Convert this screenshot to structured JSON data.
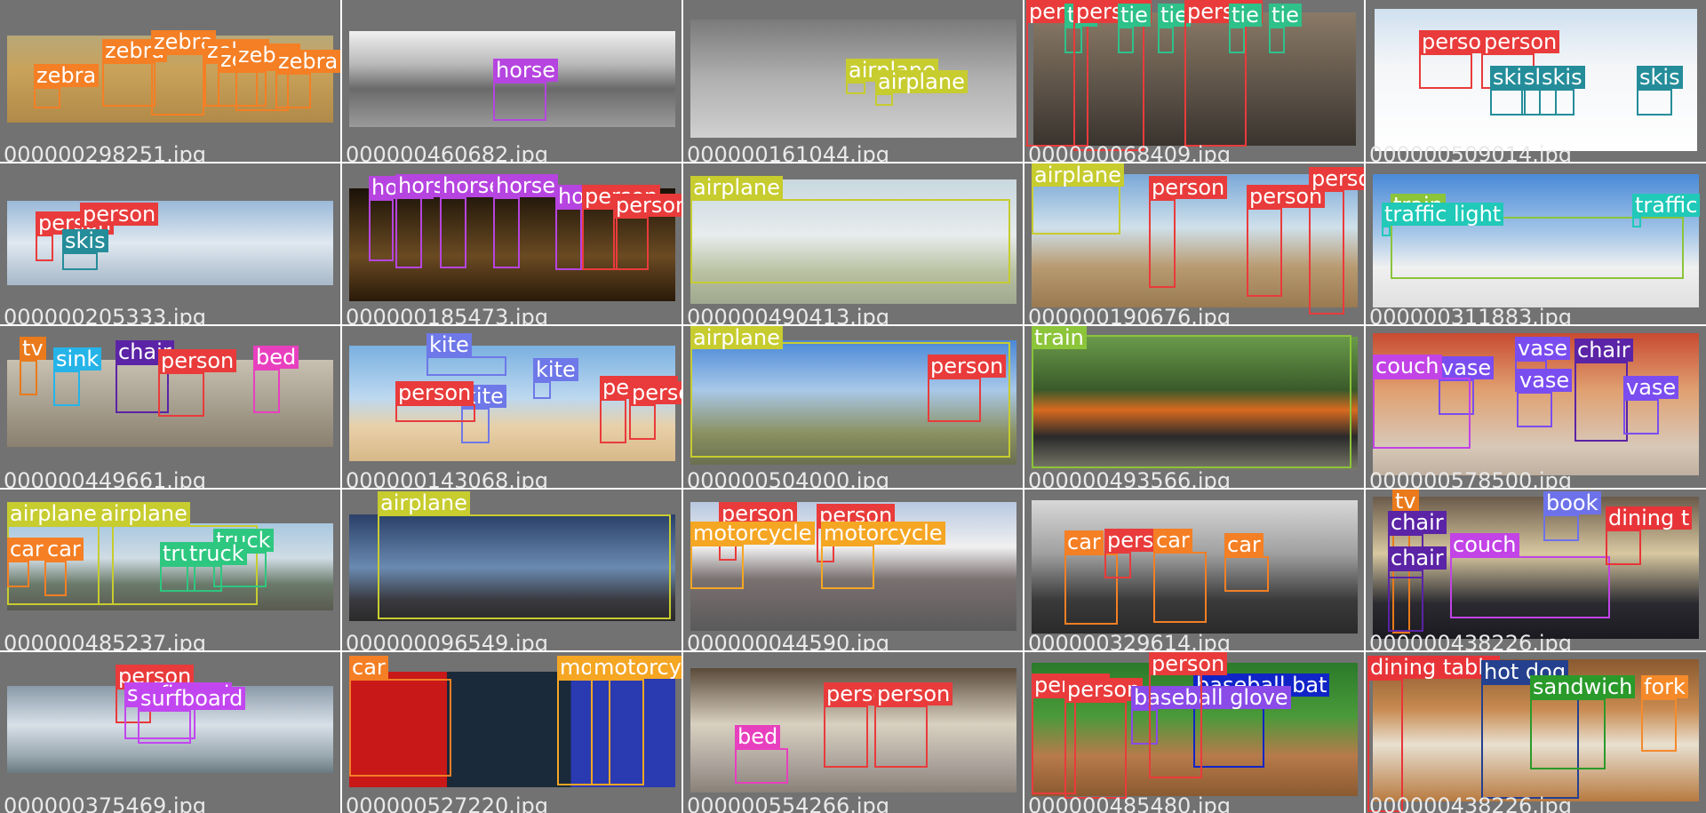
{
  "colors": {
    "zebra": "#f47f24",
    "horse": "#b644e0",
    "airplane": "#c7cc2f",
    "person": "#e93b3b",
    "tie": "#2ec18a",
    "skis": "#258d9a",
    "train": "#8cc43a",
    "traffic light": "#20c9b8",
    "tv": "#ea7a1b",
    "sink": "#26b4e8",
    "chair": "#5b23a6",
    "bed": "#e83fbf",
    "kite": "#6e78e8",
    "couch": "#c243e6",
    "vase": "#7a4df0",
    "dining table": "#e83438",
    "car": "#f47f24",
    "truck": "#2ec780",
    "motorcycle": "#f5a623",
    "book": "#6d72ea",
    "surfboard": "#c246f0",
    "baseball glove": "#8a4be8",
    "baseball bat": "#1024c8",
    "hot dog": "#24408e",
    "sandwich": "#2a9a2a",
    "fork": "#f58a2a"
  },
  "tiles": [
    {
      "caption": "000000298251.jpg",
      "labels": [
        {
          "text": "zebra",
          "cls": "zebra"
        },
        {
          "text": "zebra",
          "cls": "zebra"
        },
        {
          "text": "zebra",
          "cls": "zebra"
        },
        {
          "text": "zebra",
          "cls": "zebra"
        },
        {
          "text": "zebra",
          "cls": "zebra"
        },
        {
          "text": "zebra",
          "cls": "zebra"
        },
        {
          "text": "zebra",
          "cls": "zebra"
        }
      ]
    },
    {
      "caption": "000000460682.jpg",
      "labels": [
        {
          "text": "horse",
          "cls": "horse"
        }
      ]
    },
    {
      "caption": "000000161044.jpg",
      "labels": [
        {
          "text": "airplane",
          "cls": "airplane"
        },
        {
          "text": "airplane",
          "cls": "airplane"
        }
      ]
    },
    {
      "caption": "000000068409.jpg",
      "labels": [
        {
          "text": "person",
          "cls": "person"
        },
        {
          "text": "tie",
          "cls": "tie"
        },
        {
          "text": "person",
          "cls": "person"
        },
        {
          "text": "tie",
          "cls": "tie"
        },
        {
          "text": "tie",
          "cls": "tie"
        },
        {
          "text": "person",
          "cls": "person"
        },
        {
          "text": "tie",
          "cls": "tie"
        },
        {
          "text": "tie",
          "cls": "tie"
        }
      ]
    },
    {
      "caption": "000000509014.jpg",
      "labels": [
        {
          "text": "person",
          "cls": "person"
        },
        {
          "text": "person",
          "cls": "person"
        },
        {
          "text": "skis",
          "cls": "skis"
        },
        {
          "text": "skis",
          "cls": "skis"
        },
        {
          "text": "skis",
          "cls": "skis"
        },
        {
          "text": "skis",
          "cls": "skis"
        }
      ]
    },
    {
      "caption": "000000205333.jpg",
      "labels": [
        {
          "text": "person",
          "cls": "person"
        },
        {
          "text": "person",
          "cls": "person"
        },
        {
          "text": "skis",
          "cls": "skis"
        }
      ]
    },
    {
      "caption": "000000185473.jpg",
      "labels": [
        {
          "text": "horse",
          "cls": "horse"
        },
        {
          "text": "horse",
          "cls": "horse"
        },
        {
          "text": "horse",
          "cls": "horse"
        },
        {
          "text": "horse",
          "cls": "horse"
        },
        {
          "text": "horse",
          "cls": "horse"
        },
        {
          "text": "person",
          "cls": "person"
        },
        {
          "text": "person",
          "cls": "person"
        }
      ]
    },
    {
      "caption": "000000490413.jpg",
      "labels": [
        {
          "text": "airplane",
          "cls": "airplane"
        }
      ]
    },
    {
      "caption": "000000190676.jpg",
      "labels": [
        {
          "text": "airplane",
          "cls": "airplane"
        },
        {
          "text": "person",
          "cls": "person"
        },
        {
          "text": "person",
          "cls": "person"
        },
        {
          "text": "person",
          "cls": "person"
        }
      ]
    },
    {
      "caption": "000000311883.jpg",
      "labels": [
        {
          "text": "train",
          "cls": "train"
        },
        {
          "text": "traffic light",
          "cls": "traffic light"
        },
        {
          "text": "traffic",
          "cls": "traffic light"
        }
      ]
    },
    {
      "caption": "000000449661.jpg",
      "labels": [
        {
          "text": "tv",
          "cls": "tv"
        },
        {
          "text": "sink",
          "cls": "sink"
        },
        {
          "text": "chair",
          "cls": "chair"
        },
        {
          "text": "person",
          "cls": "person"
        },
        {
          "text": "bed",
          "cls": "bed"
        }
      ]
    },
    {
      "caption": "000000143068.jpg",
      "labels": [
        {
          "text": "kite",
          "cls": "kite"
        },
        {
          "text": "kite",
          "cls": "kite"
        },
        {
          "text": "kite",
          "cls": "kite"
        },
        {
          "text": "person",
          "cls": "person"
        },
        {
          "text": "person",
          "cls": "person"
        },
        {
          "text": "person",
          "cls": "person"
        }
      ]
    },
    {
      "caption": "000000504000.jpg",
      "labels": [
        {
          "text": "airplane",
          "cls": "airplane"
        },
        {
          "text": "person",
          "cls": "person"
        }
      ]
    },
    {
      "caption": "000000493566.jpg",
      "labels": [
        {
          "text": "train",
          "cls": "train"
        }
      ]
    },
    {
      "caption": "000000578500.jpg",
      "labels": [
        {
          "text": "vase",
          "cls": "vase"
        },
        {
          "text": "vase",
          "cls": "vase"
        },
        {
          "text": "chair",
          "cls": "chair"
        },
        {
          "text": "couch",
          "cls": "couch"
        },
        {
          "text": "vase",
          "cls": "vase"
        },
        {
          "text": "vase",
          "cls": "vase"
        }
      ]
    },
    {
      "caption": "000000485237.jpg",
      "labels": [
        {
          "text": "airplane",
          "cls": "airplane"
        },
        {
          "text": "airplane",
          "cls": "airplane"
        },
        {
          "text": "truck",
          "cls": "truck"
        },
        {
          "text": "car",
          "cls": "car"
        },
        {
          "text": "car",
          "cls": "car"
        },
        {
          "text": "truck",
          "cls": "truck"
        },
        {
          "text": "truck",
          "cls": "truck"
        }
      ]
    },
    {
      "caption": "000000096549.jpg",
      "labels": [
        {
          "text": "airplane",
          "cls": "airplane"
        }
      ]
    },
    {
      "caption": "000000044590.jpg",
      "labels": [
        {
          "text": "person",
          "cls": "person"
        },
        {
          "text": "motorcycle",
          "cls": "motorcycle"
        },
        {
          "text": "person",
          "cls": "person"
        },
        {
          "text": "motorcycle",
          "cls": "motorcycle"
        }
      ]
    },
    {
      "caption": "000000329614.jpg",
      "labels": [
        {
          "text": "car",
          "cls": "car"
        },
        {
          "text": "person",
          "cls": "person"
        },
        {
          "text": "car",
          "cls": "car"
        },
        {
          "text": "car",
          "cls": "car"
        }
      ]
    },
    {
      "caption": "000000438226.jpg",
      "labels": [
        {
          "text": "tv",
          "cls": "tv"
        },
        {
          "text": "chair",
          "cls": "chair"
        },
        {
          "text": "couch",
          "cls": "couch"
        },
        {
          "text": "book",
          "cls": "book"
        },
        {
          "text": "dining t",
          "cls": "dining table"
        },
        {
          "text": "chair",
          "cls": "chair"
        }
      ]
    },
    {
      "caption": "000000375469.jpg",
      "labels": [
        {
          "text": "person",
          "cls": "person"
        },
        {
          "text": "surfboard",
          "cls": "surfboard"
        },
        {
          "text": "surfboard",
          "cls": "surfboard"
        }
      ]
    },
    {
      "caption": "000000527220.jpg",
      "labels": [
        {
          "text": "car",
          "cls": "car"
        },
        {
          "text": "motorcycle",
          "cls": "motorcycle"
        },
        {
          "text": "motorcycle",
          "cls": "motorcycle"
        }
      ]
    },
    {
      "caption": "000000554266.jpg",
      "labels": [
        {
          "text": "person",
          "cls": "person"
        },
        {
          "text": "person",
          "cls": "person"
        },
        {
          "text": "bed",
          "cls": "bed"
        }
      ]
    },
    {
      "caption": "000000485480.jpg",
      "labels": [
        {
          "text": "person",
          "cls": "person"
        },
        {
          "text": "person",
          "cls": "person"
        },
        {
          "text": "baseball bat",
          "cls": "baseball bat"
        },
        {
          "text": "baseball glove",
          "cls": "baseball glove"
        },
        {
          "text": "person",
          "cls": "person"
        }
      ]
    },
    {
      "caption": "000000438226.jpg",
      "labels": [
        {
          "text": "dining table",
          "cls": "dining table"
        },
        {
          "text": "hot dog",
          "cls": "hot dog"
        },
        {
          "text": "sandwich",
          "cls": "sandwich"
        },
        {
          "text": "fork",
          "cls": "fork"
        }
      ]
    }
  ]
}
